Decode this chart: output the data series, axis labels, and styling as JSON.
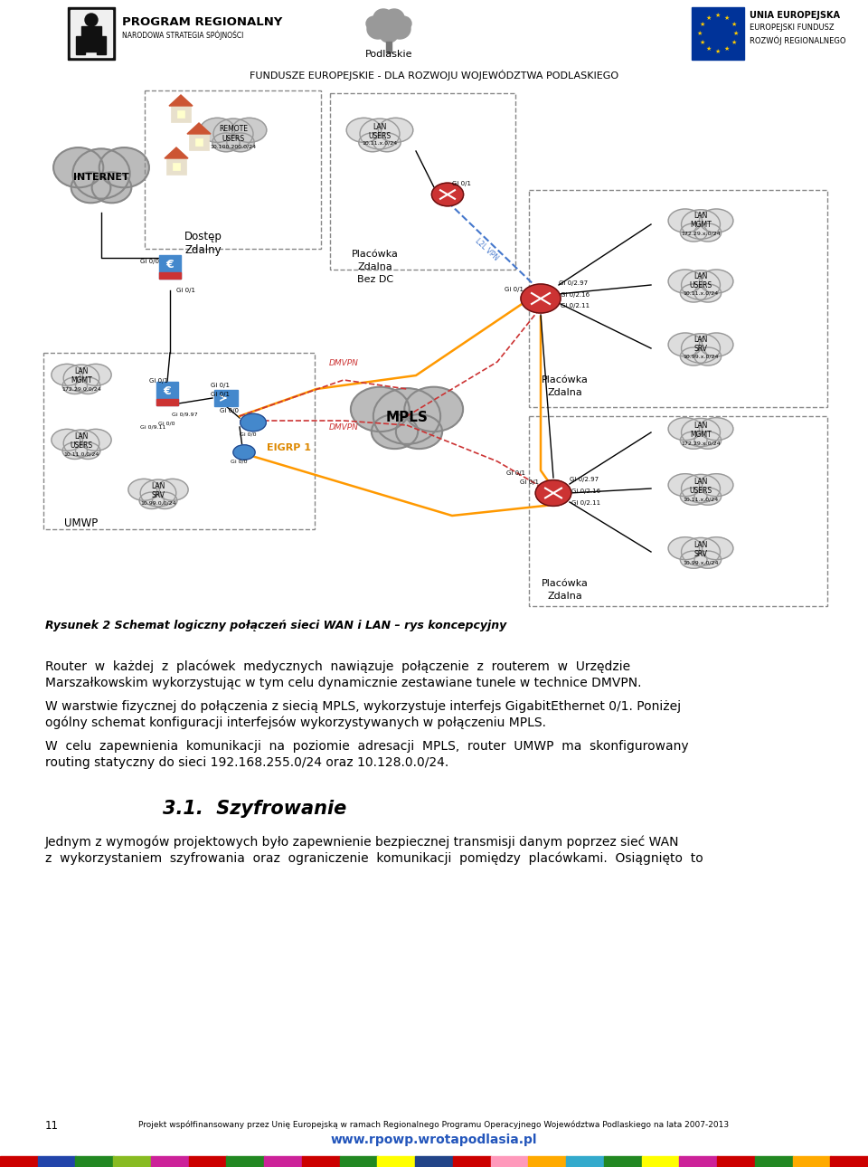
{
  "bg_color": "#ffffff",
  "header_subtitle": "FUNDUSZE EUROPEJSKIE - DLA ROZWOJU WOJEWÓDZTWA PODLASKIEGO",
  "figure_caption": "Rysunek 2 Schemat logiczny połączeń sieci WAN i LAN – rys koncepcyjny",
  "paragraph1_l1": "Router  w  każdej  z  placówek  medycznych  nawiązuje  połączenie  z  routerem  w  Urzędzie",
  "paragraph1_l2": "Marszałkowskim wykorzystując w tym celu dynamicznie zestawiane tunele w technice DMVPN.",
  "paragraph2_l1": "W warstwie fizycznej do połączenia z siecią MPLS, wykorzystuje interfejs GigabitEthernet 0/1. Poniżej",
  "paragraph2_l2": "ogólny schemat konfiguracji interfejsów wykorzystywanych w połączeniu MPLS.",
  "paragraph3_l1": "W  celu  zapewnienia  komunikacji  na  poziomie  adresacji  MPLS,  router  UMWP  ma  skonfigurowany",
  "paragraph3_l2": "routing statyczny do sieci 192.168.255.0/24 oraz 10.128.0.0/24.",
  "section_title": "3.1.  Szyfrowanie",
  "paragraph4_l1": "Jednym z wymogów projektowych było zapewnienie bezpiecznej transmisji danym poprzez sieć WAN",
  "paragraph4_l2": "z  wykorzystaniem  szyfrowania  oraz  ograniczenie  komunikacji  pomiędzy  placówkami.  Osiągnięto  to",
  "footer_text": "Projekt współfinansowany przez Unię Europejską w ramach Regionalnego Programu Operacyjnego Województwa Podlaskiego na lata 2007-2013",
  "footer_url": "www.rpowp.wrotapodlasia.pl",
  "page_number": "11",
  "colors_bar": [
    "#cc0000",
    "#2244aa",
    "#228822",
    "#88bb22",
    "#cc2299",
    "#cc0000",
    "#228822",
    "#cc2299",
    "#cc0000",
    "#228822",
    "#ffff00",
    "#224488",
    "#cc0000",
    "#ff99bb",
    "#ffaa00",
    "#33aacc",
    "#228822",
    "#ffff00",
    "#cc2299",
    "#cc0000",
    "#228822",
    "#ffaa00",
    "#cc0000"
  ]
}
